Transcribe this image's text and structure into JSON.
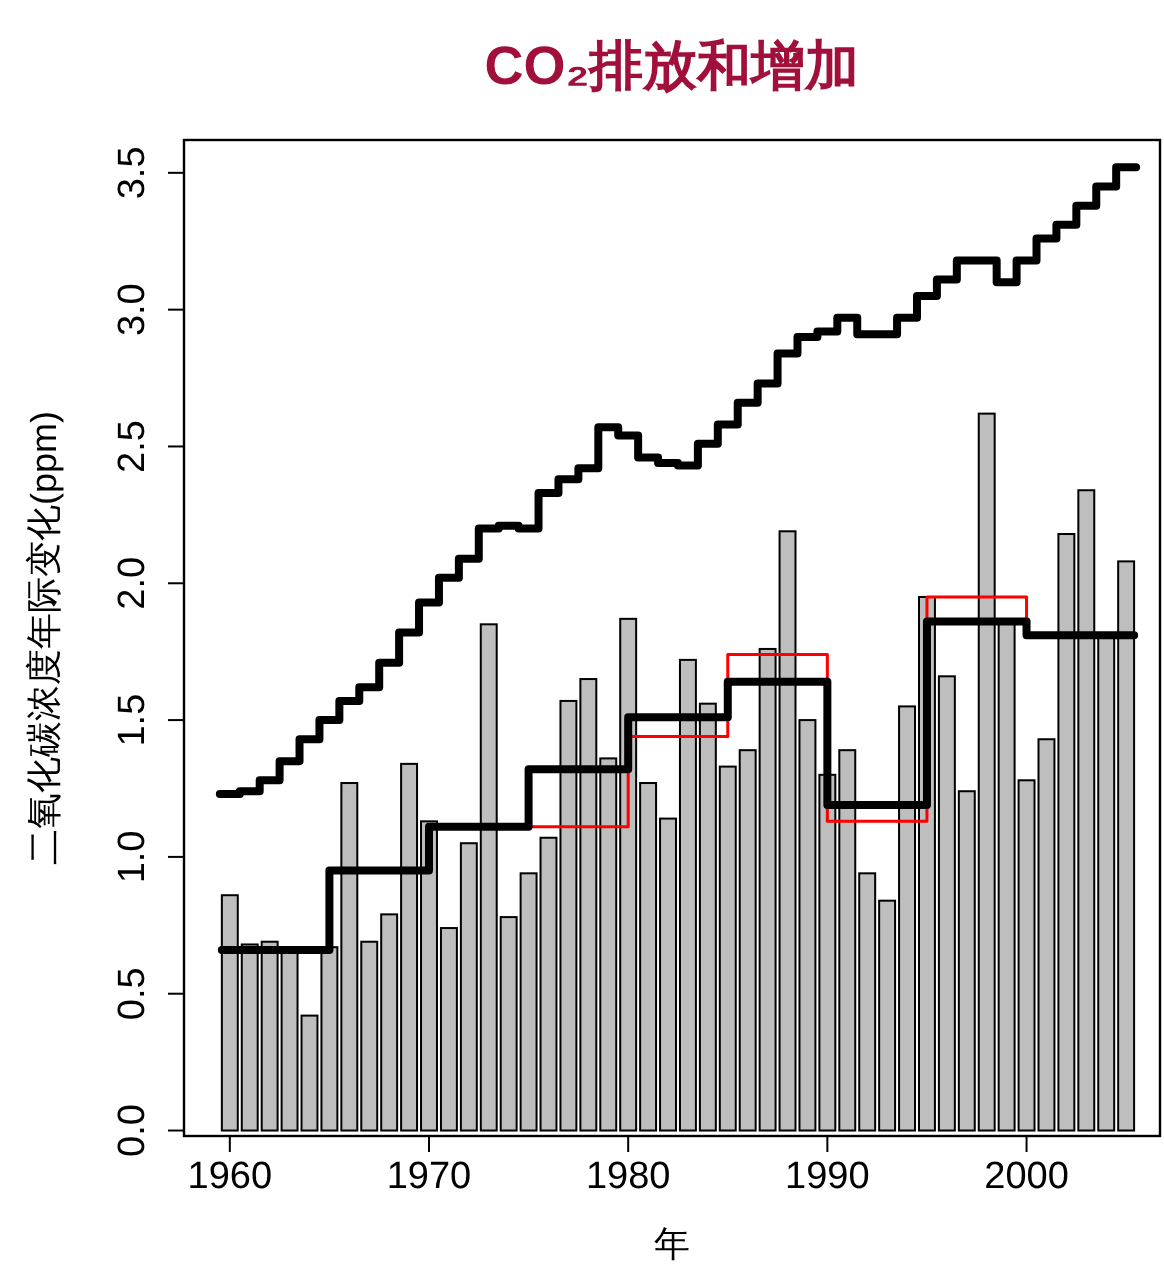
{
  "chart_data": {
    "type": "bar",
    "title": "CO₂排放和增加",
    "xlabel": "年",
    "ylabel": "二氧化碳浓度年际变化(ppm)",
    "xlim": [
      1957.7,
      2006.7
    ],
    "xticks": [
      1960,
      1970,
      1980,
      1990,
      2000
    ],
    "ylim": [
      -0.02,
      3.62
    ],
    "yticks": [
      {
        "value": 0,
        "label": "0.0"
      },
      0.5,
      {
        "value": 1,
        "label": "1.0"
      },
      1.5,
      {
        "value": 2,
        "label": "2.0"
      },
      2.5,
      {
        "value": 3,
        "label": "3.0"
      },
      3.5
    ],
    "grid": false,
    "series": [
      {
        "color": "#bebebe",
        "x": [
          1960,
          1961,
          1962,
          1963,
          1964,
          1965,
          1966,
          1967,
          1968,
          1969,
          1970,
          1971,
          1972,
          1973,
          1974,
          1975,
          1976,
          1977,
          1978,
          1979,
          1980,
          1981,
          1982,
          1983,
          1984,
          1985,
          1986,
          1987,
          1988,
          1989,
          1990,
          1991,
          1992,
          1993,
          1994,
          1995,
          1996,
          1997,
          1998,
          1999,
          2000,
          2001,
          2002,
          2003,
          2004,
          2005
        ],
        "values": [
          0.86,
          0.68,
          0.69,
          0.65,
          0.42,
          0.67,
          1.27,
          0.69,
          0.79,
          1.34,
          1.13,
          0.74,
          1.05,
          1.85,
          0.78,
          0.94,
          1.07,
          1.57,
          1.65,
          1.36,
          1.87,
          1.27,
          1.14,
          1.72,
          1.56,
          1.33,
          1.39,
          1.76,
          2.19,
          1.5,
          1.3,
          1.39,
          0.94,
          0.84,
          1.55,
          1.95,
          1.66,
          1.24,
          2.62,
          1.86,
          1.28,
          1.43,
          2.18,
          2.34,
          1.81,
          2.08
        ]
      },
      {
        "type": "step",
        "color": "#ff0000",
        "x": [
          1975,
          1980,
          1985,
          1990,
          1995,
          2000,
          2005.4
        ],
        "values": [
          1.11,
          1.44,
          1.74,
          1.13,
          1.95,
          1.81,
          1.81
        ]
      },
      {
        "type": "step",
        "color": "#000000",
        "x": [
          1959.6,
          1965,
          1970,
          1975,
          1980,
          1985,
          1990,
          1995,
          2000,
          2005.4
        ],
        "values": [
          0.66,
          0.95,
          1.11,
          1.32,
          1.51,
          1.64,
          1.19,
          1.86,
          1.81,
          1.81
        ]
      },
      {
        "type": "step",
        "color": "#000000",
        "x": [
          1959.5,
          1960.5,
          1961.5,
          1962.5,
          1963.5,
          1964.5,
          1965.5,
          1966.5,
          1967.5,
          1968.5,
          1969.5,
          1970.5,
          1971.5,
          1972.5,
          1973.5,
          1974.5,
          1975.5,
          1976.5,
          1977.5,
          1978.5,
          1979.5,
          1980.5,
          1981.5,
          1982.5,
          1983.5,
          1984.5,
          1985.5,
          1986.5,
          1987.5,
          1988.5,
          1989.5,
          1990.5,
          1991.5,
          1992.5,
          1993.5,
          1994.5,
          1995.5,
          1996.5,
          1997.5,
          1998.5,
          1999.5,
          2000.5,
          2001.5,
          2002.5,
          2003.5,
          2004.5,
          2005.5
        ],
        "values": [
          1.23,
          1.24,
          1.28,
          1.35,
          1.43,
          1.5,
          1.57,
          1.62,
          1.71,
          1.82,
          1.93,
          2.02,
          2.09,
          2.2,
          2.21,
          2.2,
          2.33,
          2.38,
          2.42,
          2.57,
          2.54,
          2.46,
          2.44,
          2.43,
          2.51,
          2.58,
          2.66,
          2.73,
          2.84,
          2.9,
          2.92,
          2.97,
          2.91,
          2.91,
          2.97,
          3.05,
          3.11,
          3.18,
          3.18,
          3.1,
          3.18,
          3.26,
          3.31,
          3.38,
          3.45,
          3.52,
          3.52
        ]
      }
    ]
  }
}
